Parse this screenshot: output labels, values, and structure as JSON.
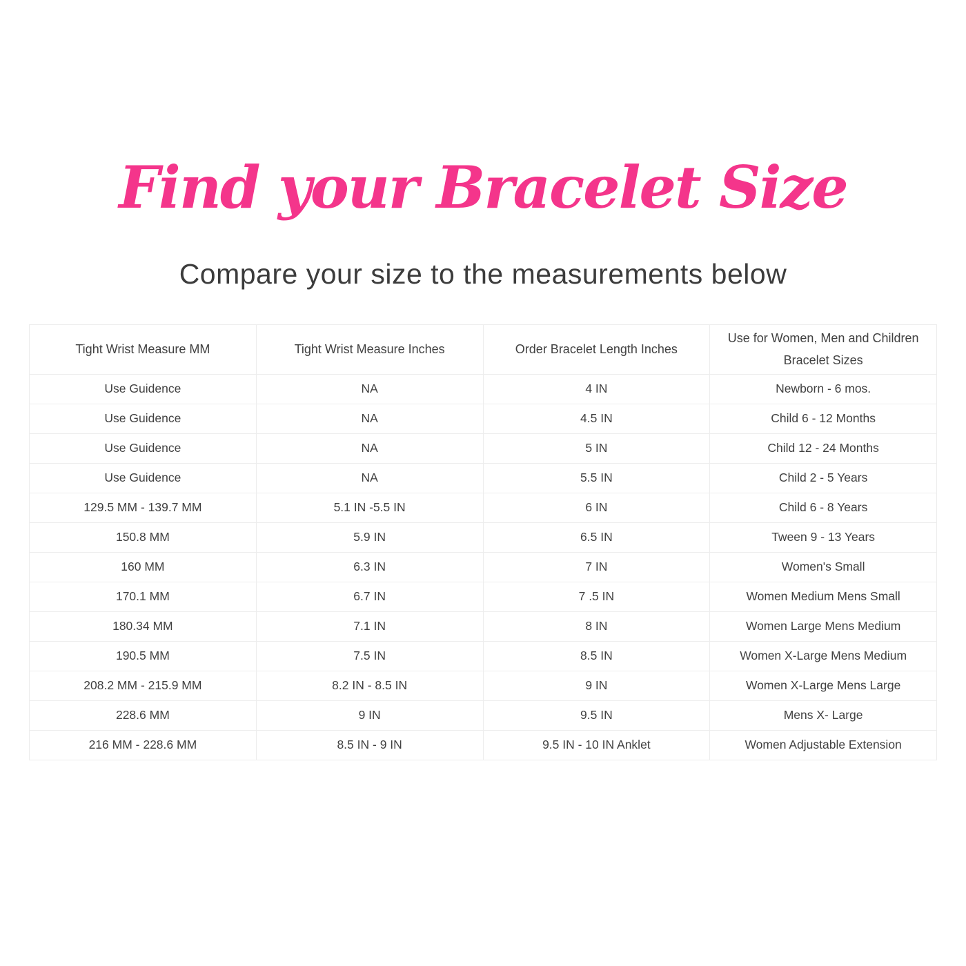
{
  "page": {
    "title": "Find your Bracelet Size",
    "subtitle": "Compare your size to the measurements below"
  },
  "colors": {
    "accent_pink": "#f4358b",
    "body_text": "#414141",
    "table_border": "#ededed",
    "background": "#ffffff"
  },
  "table": {
    "headers": [
      "Tight Wrist Measure MM",
      "Tight Wrist Measure Inches",
      "Order Bracelet Length Inches",
      "Use for Women, Men and Children\nBracelet Sizes"
    ],
    "rows": [
      [
        "Use Guidence",
        "NA",
        "4 IN",
        "Newborn - 6 mos."
      ],
      [
        "Use Guidence",
        "NA",
        "4.5 IN",
        "Child 6 - 12 Months"
      ],
      [
        "Use Guidence",
        "NA",
        "5 IN",
        "Child 12 - 24 Months"
      ],
      [
        "Use Guidence",
        "NA",
        "5.5 IN",
        "Child 2 - 5 Years"
      ],
      [
        "129.5 MM - 139.7 MM",
        "5.1 IN -5.5 IN",
        "6 IN",
        "Child 6 - 8 Years"
      ],
      [
        "150.8 MM",
        "5.9 IN",
        "6.5 IN",
        "Tween 9 - 13 Years"
      ],
      [
        "160 MM",
        "6.3 IN",
        "7 IN",
        "Women's Small"
      ],
      [
        "170.1 MM",
        "6.7 IN",
        "7 .5 IN",
        "Women Medium Mens Small"
      ],
      [
        "180.34 MM",
        "7.1 IN",
        "8 IN",
        "Women Large Mens Medium"
      ],
      [
        "190.5 MM",
        "7.5 IN",
        "8.5 IN",
        "Women X-Large Mens Medium"
      ],
      [
        "208.2 MM - 215.9 MM",
        "8.2 IN - 8.5 IN",
        "9 IN",
        "Women X-Large Mens Large"
      ],
      [
        "228.6 MM",
        "9 IN",
        "9.5 IN",
        "Mens X- Large"
      ],
      [
        "216 MM - 228.6 MM",
        "8.5 IN - 9 IN",
        "9.5 IN - 10 IN Anklet",
        "Women Adjustable Extension"
      ]
    ]
  }
}
